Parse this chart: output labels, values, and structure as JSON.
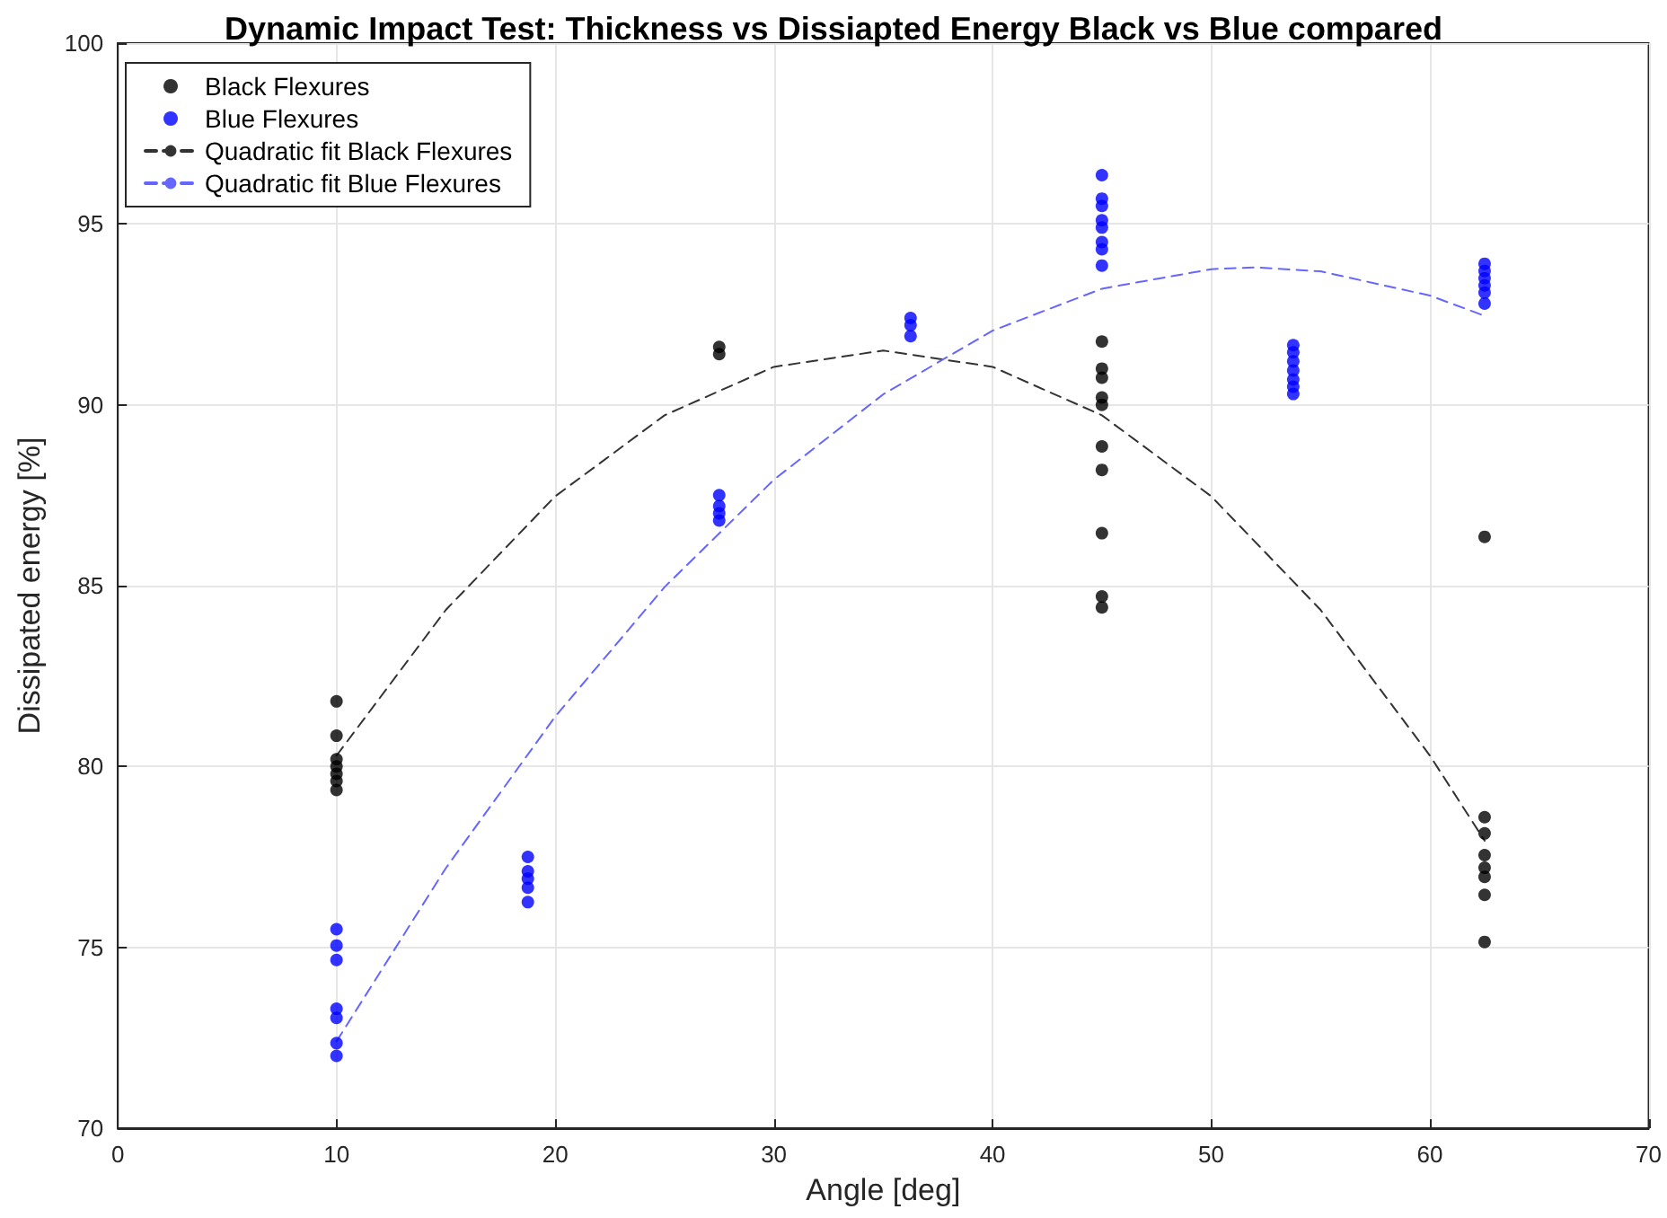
{
  "chart_data": {
    "type": "scatter",
    "title": "Dynamic Impact Test: Thickness vs Dissiapted Energy Black vs Blue compared",
    "xlabel": "Angle [deg]",
    "ylabel": "Dissipated energy [%]",
    "xlim": [
      0,
      70
    ],
    "xticks": [
      0,
      10,
      20,
      30,
      40,
      50,
      60,
      70
    ],
    "ylim": [
      70,
      100
    ],
    "yticks": [
      70,
      75,
      80,
      85,
      90,
      95,
      100
    ],
    "grid": true,
    "legend": "top left",
    "marker": "circle",
    "series": [
      {
        "name": "Black Flexures",
        "color": "#000000",
        "x": [
          10,
          10,
          10,
          10,
          10,
          10,
          10,
          27.5,
          27.5,
          45,
          45,
          45,
          45,
          45,
          45,
          45,
          45,
          45,
          45,
          62.5,
          62.5,
          62.5,
          62.5,
          62.5,
          62.5,
          62.5,
          62.5
        ],
        "values": [
          81.8,
          80.85,
          80.2,
          80.0,
          79.8,
          79.6,
          79.35,
          91.6,
          91.4,
          91.75,
          91.0,
          90.75,
          90.2,
          90.0,
          88.85,
          88.2,
          86.45,
          84.7,
          84.4,
          86.35,
          78.6,
          78.15,
          77.55,
          77.2,
          76.95,
          76.45,
          75.15
        ]
      },
      {
        "name": "Blue Flexures",
        "color": "#0000ff",
        "x": [
          10,
          10,
          10,
          10,
          10,
          10,
          10,
          18.75,
          18.75,
          18.75,
          18.75,
          18.75,
          27.5,
          27.5,
          27.5,
          27.5,
          36.25,
          36.25,
          36.25,
          45,
          45,
          45,
          45,
          45,
          45,
          45,
          45,
          53.75,
          53.75,
          53.75,
          53.75,
          53.75,
          53.75,
          53.75,
          62.5,
          62.5,
          62.5,
          62.5,
          62.5,
          62.5
        ],
        "values": [
          75.5,
          75.05,
          74.65,
          73.3,
          73.05,
          72.35,
          72.0,
          77.5,
          77.1,
          76.9,
          76.65,
          76.25,
          87.5,
          87.2,
          87.0,
          86.8,
          92.4,
          92.2,
          91.9,
          96.35,
          95.7,
          95.5,
          95.1,
          94.9,
          94.5,
          94.3,
          93.85,
          91.65,
          91.45,
          91.2,
          90.95,
          90.7,
          90.5,
          90.3,
          93.9,
          93.7,
          93.5,
          93.3,
          93.1,
          92.8
        ]
      },
      {
        "name": "Quadratic fit Black Flexures",
        "type": "line",
        "line_style": "dashed",
        "marker": "none",
        "color": "#333333",
        "x": [
          10,
          15,
          20,
          25,
          30,
          35,
          40,
          45,
          50,
          55,
          60,
          62.5
        ],
        "values": [
          80.3,
          84.33,
          87.47,
          89.71,
          91.05,
          91.5,
          91.05,
          89.71,
          87.47,
          84.33,
          80.3,
          77.95
        ]
      },
      {
        "name": "Quadratic fit Blue Flexures",
        "type": "line",
        "line_style": "dashed",
        "marker": "none",
        "color": "#6666ff",
        "x": [
          10,
          15,
          20,
          25,
          30,
          35,
          40,
          45,
          50,
          52,
          55,
          60,
          62.5
        ],
        "values": [
          72.4,
          77.19,
          81.38,
          84.96,
          87.93,
          90.29,
          92.05,
          93.21,
          93.75,
          93.8,
          93.69,
          93.02,
          92.46
        ]
      }
    ]
  }
}
